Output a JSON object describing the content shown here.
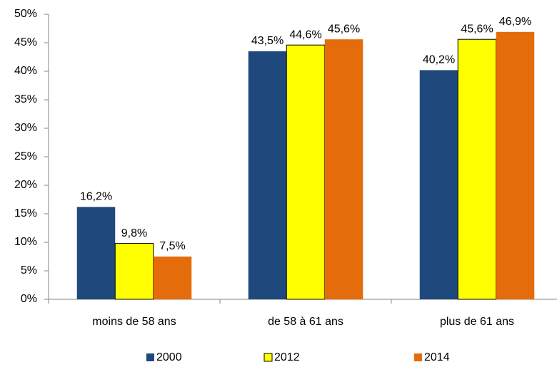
{
  "chart_data": {
    "type": "bar",
    "categories": [
      "moins de 58 ans",
      "de 58 à 61 ans",
      "plus de 61 ans"
    ],
    "series": [
      {
        "name": "2000",
        "color": "#1f497d",
        "values": [
          16.2,
          43.5,
          40.2
        ],
        "value_labels": [
          "16,2%",
          "43,5%",
          "40,2%"
        ]
      },
      {
        "name": "2012",
        "color": "#ffff00",
        "edgecolor": "#000000",
        "values": [
          9.8,
          44.6,
          45.6
        ],
        "value_labels": [
          "9,8%",
          "44,6%",
          "45,6%"
        ]
      },
      {
        "name": "2014",
        "color": "#e46c0a",
        "values": [
          7.5,
          45.6,
          46.9
        ],
        "value_labels": [
          "7,5%",
          "45,6%",
          "46,9%"
        ]
      }
    ],
    "ylim": [
      0,
      50
    ],
    "yticks": [
      {
        "value": 0,
        "label": "0%"
      },
      {
        "value": 5,
        "label": "5%"
      },
      {
        "value": 10,
        "label": "10%"
      },
      {
        "value": 15,
        "label": "15%"
      },
      {
        "value": 20,
        "label": "20%"
      },
      {
        "value": 25,
        "label": "25%"
      },
      {
        "value": 30,
        "label": "30%"
      },
      {
        "value": 35,
        "label": "35%"
      },
      {
        "value": 40,
        "label": "40%"
      },
      {
        "value": 45,
        "label": "45%"
      },
      {
        "value": 50,
        "label": "50%"
      }
    ],
    "legend": "bottom"
  }
}
